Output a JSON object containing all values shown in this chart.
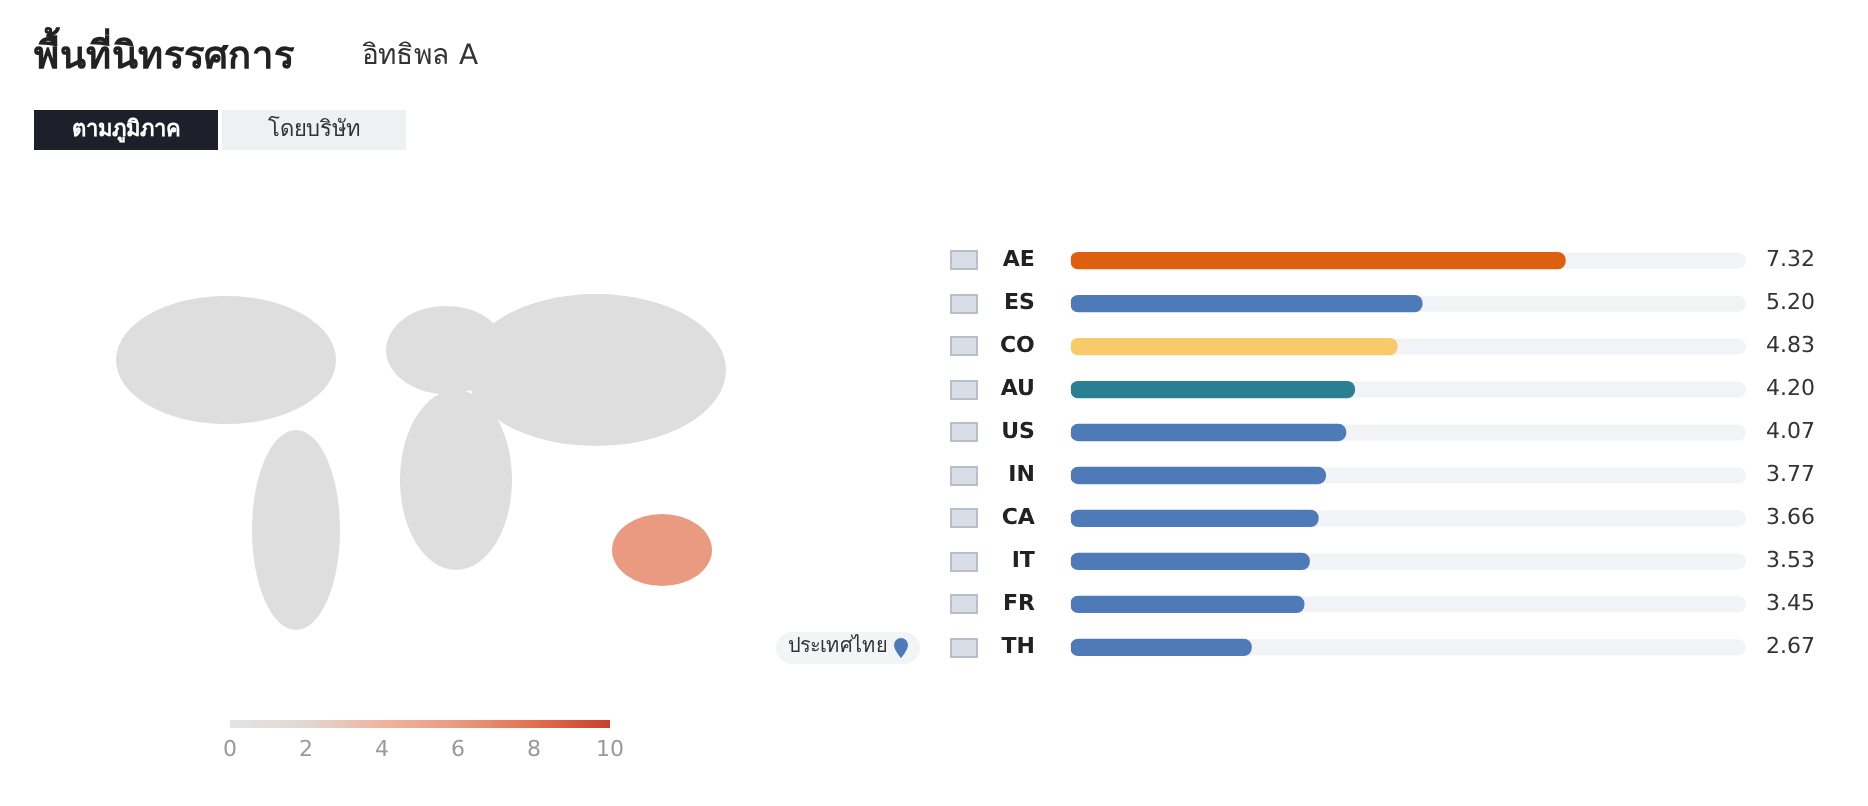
{
  "chart_data": {
    "type": "bar",
    "orientation": "horizontal",
    "title": "พื้นที่นิทรรศการ",
    "subtitle": "อิทธิพล A",
    "categories": [
      "AE",
      "ES",
      "CO",
      "AU",
      "US",
      "IN",
      "CA",
      "IT",
      "FR",
      "TH"
    ],
    "values": [
      7.32,
      5.2,
      4.83,
      4.2,
      4.07,
      3.77,
      3.66,
      3.53,
      3.45,
      2.67
    ],
    "colors": [
      "#dd5f0f",
      "#4f7ab8",
      "#f8cb6a",
      "#2b7f93",
      "#4f7ab8",
      "#4f7ab8",
      "#4f7ab8",
      "#4f7ab8",
      "#4f7ab8",
      "#4f7ab8"
    ],
    "value_labels": [
      "7.32",
      "5.20",
      "4.83",
      "4.20",
      "4.07",
      "3.77",
      "3.66",
      "3.53",
      "3.45",
      "2.67"
    ],
    "xlim": [
      0,
      10
    ],
    "tick_labels": "y",
    "grid": false,
    "legend": false,
    "clim": [
      0,
      10
    ],
    "cticks": [
      0,
      2,
      4,
      6,
      8,
      10
    ],
    "annotations": [
      "ตามภูมิภาค",
      "โดยบริษัท",
      "ประเทศไทย"
    ]
  }
}
